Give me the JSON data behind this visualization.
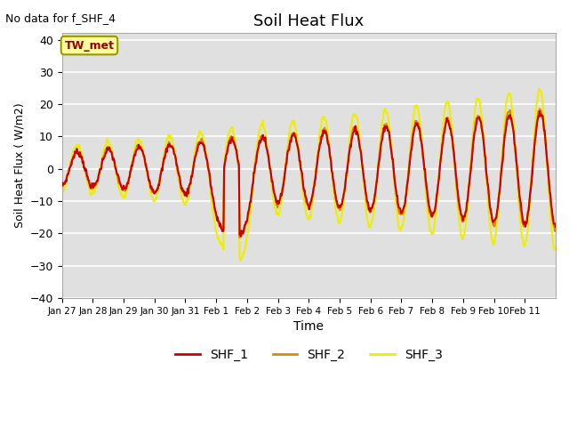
{
  "title": "Soil Heat Flux",
  "top_left_text": "No data for f_SHF_4",
  "xlabel": "Time",
  "ylabel": "Soil Heat Flux ( W/m2)",
  "ylim": [
    -40,
    42
  ],
  "bg_color": "#e0e0e0",
  "legend_labels": [
    "SHF_1",
    "SHF_2",
    "SHF_3"
  ],
  "legend_colors": [
    "#cc0000",
    "#dd8800",
    "#eeee00"
  ],
  "box_label": "TW_met",
  "box_facecolor": "#ffff99",
  "box_edgecolor": "#999900",
  "xtick_labels": [
    "Jan 27",
    "Jan 28",
    "Jan 29",
    "Jan 30",
    "Jan 31",
    "Feb 1",
    "Feb 2",
    "Feb 3",
    "Feb 4",
    "Feb 5",
    "Feb 6",
    "Feb 7",
    "Feb 8",
    "Feb 9",
    "Feb 10",
    "Feb 11"
  ],
  "ytick_vals": [
    -40,
    -30,
    -20,
    -10,
    0,
    10,
    20,
    30,
    40
  ],
  "grid_color": "white",
  "line_width": 1.5
}
